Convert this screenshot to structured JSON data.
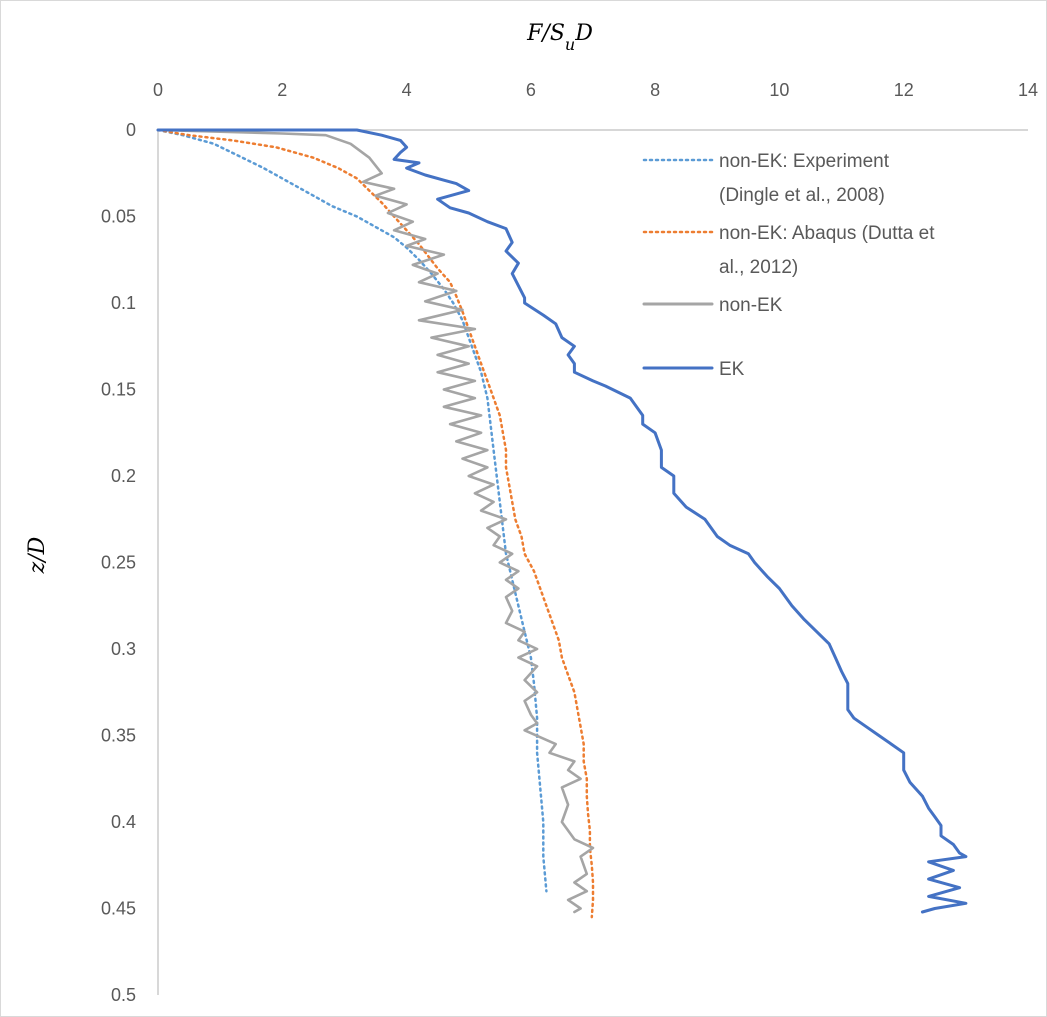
{
  "chart_data": {
    "type": "line",
    "title": "",
    "xlabel": "F/SuD",
    "ylabel": "z/D",
    "xlim": [
      0,
      14
    ],
    "ylim": [
      0,
      0.5
    ],
    "x_axis_position": "top",
    "y_axis_inverted": true,
    "grid": false,
    "legend_position": "top-right",
    "x_ticks": [
      "0",
      "2",
      "4",
      "6",
      "8",
      "10",
      "12",
      "14"
    ],
    "y_ticks": [
      "0",
      "0.05",
      "0.1",
      "0.15",
      "0.2",
      "0.25",
      "0.3",
      "0.35",
      "0.4",
      "0.45",
      "0.5"
    ],
    "series": [
      {
        "name": "non-EK: Experiment (Dingle et al., 2008)",
        "legend_lines": [
          "non-EK: Experiment",
          "(Dingle et al., 2008)"
        ],
        "color": "#5b9bd5",
        "style": "dotted",
        "points": [
          [
            0,
            0
          ],
          [
            0.4,
            0.003
          ],
          [
            0.9,
            0.008
          ],
          [
            1.3,
            0.015
          ],
          [
            1.7,
            0.022
          ],
          [
            2.1,
            0.03
          ],
          [
            2.5,
            0.038
          ],
          [
            2.8,
            0.044
          ],
          [
            3.2,
            0.05
          ],
          [
            3.5,
            0.056
          ],
          [
            3.8,
            0.062
          ],
          [
            4.0,
            0.068
          ],
          [
            4.2,
            0.075
          ],
          [
            4.4,
            0.083
          ],
          [
            4.6,
            0.092
          ],
          [
            4.75,
            0.1
          ],
          [
            4.9,
            0.11
          ],
          [
            5.0,
            0.12
          ],
          [
            5.1,
            0.13
          ],
          [
            5.2,
            0.14
          ],
          [
            5.3,
            0.155
          ],
          [
            5.35,
            0.17
          ],
          [
            5.4,
            0.185
          ],
          [
            5.45,
            0.2
          ],
          [
            5.5,
            0.215
          ],
          [
            5.55,
            0.23
          ],
          [
            5.6,
            0.245
          ],
          [
            5.7,
            0.26
          ],
          [
            5.8,
            0.275
          ],
          [
            5.9,
            0.29
          ],
          [
            6.0,
            0.305
          ],
          [
            6.05,
            0.32
          ],
          [
            6.1,
            0.34
          ],
          [
            6.1,
            0.36
          ],
          [
            6.15,
            0.38
          ],
          [
            6.2,
            0.4
          ],
          [
            6.2,
            0.42
          ],
          [
            6.25,
            0.44
          ]
        ]
      },
      {
        "name": "non-EK: Abaqus (Dutta et al., 2012)",
        "legend_lines": [
          "non-EK: Abaqus (Dutta et",
          "al., 2012)"
        ],
        "color": "#ed7d31",
        "style": "dotted",
        "points": [
          [
            0,
            0
          ],
          [
            0.5,
            0.003
          ],
          [
            1.2,
            0.006
          ],
          [
            1.9,
            0.01
          ],
          [
            2.5,
            0.016
          ],
          [
            2.9,
            0.022
          ],
          [
            3.2,
            0.028
          ],
          [
            3.4,
            0.035
          ],
          [
            3.6,
            0.042
          ],
          [
            3.8,
            0.05
          ],
          [
            4.0,
            0.058
          ],
          [
            4.2,
            0.066
          ],
          [
            4.35,
            0.073
          ],
          [
            4.5,
            0.08
          ],
          [
            4.7,
            0.088
          ],
          [
            4.8,
            0.096
          ],
          [
            4.9,
            0.105
          ],
          [
            5.0,
            0.115
          ],
          [
            5.1,
            0.125
          ],
          [
            5.2,
            0.135
          ],
          [
            5.3,
            0.145
          ],
          [
            5.4,
            0.155
          ],
          [
            5.5,
            0.165
          ],
          [
            5.55,
            0.175
          ],
          [
            5.6,
            0.185
          ],
          [
            5.6,
            0.195
          ],
          [
            5.65,
            0.205
          ],
          [
            5.7,
            0.215
          ],
          [
            5.75,
            0.225
          ],
          [
            5.85,
            0.235
          ],
          [
            5.9,
            0.245
          ],
          [
            6.05,
            0.255
          ],
          [
            6.15,
            0.265
          ],
          [
            6.25,
            0.275
          ],
          [
            6.35,
            0.285
          ],
          [
            6.45,
            0.295
          ],
          [
            6.5,
            0.305
          ],
          [
            6.6,
            0.315
          ],
          [
            6.7,
            0.325
          ],
          [
            6.75,
            0.335
          ],
          [
            6.8,
            0.345
          ],
          [
            6.85,
            0.355
          ],
          [
            6.85,
            0.365
          ],
          [
            6.9,
            0.375
          ],
          [
            6.9,
            0.385
          ],
          [
            6.92,
            0.395
          ],
          [
            6.95,
            0.405
          ],
          [
            6.95,
            0.415
          ],
          [
            6.98,
            0.425
          ],
          [
            7.0,
            0.435
          ],
          [
            7.0,
            0.445
          ],
          [
            6.98,
            0.455
          ]
        ]
      },
      {
        "name": "non-EK",
        "legend_lines": [
          "non-EK"
        ],
        "color": "#a5a5a5",
        "style": "solid",
        "points": [
          [
            0,
            0
          ],
          [
            1.0,
            0.001
          ],
          [
            2.0,
            0.002
          ],
          [
            2.7,
            0.003
          ],
          [
            3.1,
            0.008
          ],
          [
            3.4,
            0.016
          ],
          [
            3.6,
            0.025
          ],
          [
            3.3,
            0.03
          ],
          [
            3.8,
            0.034
          ],
          [
            3.5,
            0.038
          ],
          [
            4.0,
            0.043
          ],
          [
            3.7,
            0.048
          ],
          [
            4.1,
            0.053
          ],
          [
            3.8,
            0.058
          ],
          [
            4.3,
            0.063
          ],
          [
            4.0,
            0.067
          ],
          [
            4.6,
            0.072
          ],
          [
            4.1,
            0.078
          ],
          [
            4.5,
            0.083
          ],
          [
            4.2,
            0.088
          ],
          [
            4.8,
            0.093
          ],
          [
            4.3,
            0.099
          ],
          [
            4.9,
            0.104
          ],
          [
            4.2,
            0.11
          ],
          [
            5.1,
            0.115
          ],
          [
            4.4,
            0.12
          ],
          [
            5.0,
            0.125
          ],
          [
            4.5,
            0.13
          ],
          [
            5.0,
            0.135
          ],
          [
            4.5,
            0.14
          ],
          [
            5.1,
            0.145
          ],
          [
            4.6,
            0.15
          ],
          [
            5.1,
            0.155
          ],
          [
            4.6,
            0.16
          ],
          [
            5.2,
            0.165
          ],
          [
            4.7,
            0.17
          ],
          [
            5.2,
            0.175
          ],
          [
            4.8,
            0.18
          ],
          [
            5.3,
            0.185
          ],
          [
            4.9,
            0.19
          ],
          [
            5.3,
            0.195
          ],
          [
            5.0,
            0.2
          ],
          [
            5.4,
            0.205
          ],
          [
            5.1,
            0.21
          ],
          [
            5.4,
            0.215
          ],
          [
            5.2,
            0.22
          ],
          [
            5.6,
            0.225
          ],
          [
            5.3,
            0.23
          ],
          [
            5.5,
            0.235
          ],
          [
            5.4,
            0.24
          ],
          [
            5.7,
            0.245
          ],
          [
            5.5,
            0.25
          ],
          [
            5.8,
            0.255
          ],
          [
            5.6,
            0.26
          ],
          [
            5.8,
            0.265
          ],
          [
            5.6,
            0.27
          ],
          [
            5.7,
            0.278
          ],
          [
            5.6,
            0.285
          ],
          [
            5.9,
            0.29
          ],
          [
            5.8,
            0.295
          ],
          [
            6.1,
            0.3
          ],
          [
            5.8,
            0.305
          ],
          [
            6.1,
            0.31
          ],
          [
            5.9,
            0.318
          ],
          [
            6.1,
            0.325
          ],
          [
            5.9,
            0.33
          ],
          [
            6.0,
            0.338
          ],
          [
            6.1,
            0.343
          ],
          [
            5.9,
            0.347
          ],
          [
            6.4,
            0.355
          ],
          [
            6.3,
            0.36
          ],
          [
            6.7,
            0.365
          ],
          [
            6.6,
            0.37
          ],
          [
            6.8,
            0.375
          ],
          [
            6.5,
            0.38
          ],
          [
            6.6,
            0.39
          ],
          [
            6.5,
            0.4
          ],
          [
            6.7,
            0.41
          ],
          [
            7.0,
            0.415
          ],
          [
            6.8,
            0.42
          ],
          [
            6.9,
            0.43
          ],
          [
            6.7,
            0.435
          ],
          [
            6.9,
            0.44
          ],
          [
            6.6,
            0.445
          ],
          [
            6.8,
            0.45
          ],
          [
            6.7,
            0.452
          ]
        ]
      },
      {
        "name": "EK",
        "legend_lines": [
          "EK"
        ],
        "color": "#4472c4",
        "style": "solid",
        "points": [
          [
            0,
            0
          ],
          [
            1.2,
            0.0
          ],
          [
            2.5,
            0.0
          ],
          [
            3.2,
            0.0
          ],
          [
            3.6,
            0.003
          ],
          [
            3.9,
            0.006
          ],
          [
            4.0,
            0.01
          ],
          [
            3.9,
            0.013
          ],
          [
            3.8,
            0.017
          ],
          [
            4.2,
            0.019
          ],
          [
            4.0,
            0.022
          ],
          [
            4.3,
            0.026
          ],
          [
            4.6,
            0.029
          ],
          [
            4.8,
            0.031
          ],
          [
            5.0,
            0.035
          ],
          [
            4.5,
            0.04
          ],
          [
            4.7,
            0.045
          ],
          [
            5.0,
            0.048
          ],
          [
            5.3,
            0.053
          ],
          [
            5.6,
            0.057
          ],
          [
            5.7,
            0.065
          ],
          [
            5.6,
            0.07
          ],
          [
            5.8,
            0.077
          ],
          [
            5.7,
            0.083
          ],
          [
            5.8,
            0.09
          ],
          [
            5.9,
            0.097
          ],
          [
            5.9,
            0.1
          ],
          [
            6.2,
            0.107
          ],
          [
            6.4,
            0.112
          ],
          [
            6.5,
            0.12
          ],
          [
            6.7,
            0.125
          ],
          [
            6.6,
            0.13
          ],
          [
            6.7,
            0.135
          ],
          [
            6.7,
            0.14
          ],
          [
            7.0,
            0.145
          ],
          [
            7.2,
            0.148
          ],
          [
            7.6,
            0.155
          ],
          [
            7.8,
            0.165
          ],
          [
            7.8,
            0.17
          ],
          [
            8.0,
            0.175
          ],
          [
            8.1,
            0.185
          ],
          [
            8.1,
            0.195
          ],
          [
            8.3,
            0.2
          ],
          [
            8.3,
            0.21
          ],
          [
            8.5,
            0.218
          ],
          [
            8.8,
            0.225
          ],
          [
            9.0,
            0.235
          ],
          [
            9.2,
            0.24
          ],
          [
            9.5,
            0.245
          ],
          [
            9.6,
            0.25
          ],
          [
            9.8,
            0.258
          ],
          [
            10.0,
            0.265
          ],
          [
            10.2,
            0.275
          ],
          [
            10.4,
            0.283
          ],
          [
            10.6,
            0.29
          ],
          [
            10.8,
            0.297
          ],
          [
            10.9,
            0.305
          ],
          [
            11.0,
            0.313
          ],
          [
            11.1,
            0.32
          ],
          [
            11.1,
            0.328
          ],
          [
            11.1,
            0.335
          ],
          [
            11.2,
            0.34
          ],
          [
            11.4,
            0.345
          ],
          [
            11.6,
            0.35
          ],
          [
            11.8,
            0.355
          ],
          [
            12.0,
            0.36
          ],
          [
            12.0,
            0.37
          ],
          [
            12.1,
            0.377
          ],
          [
            12.3,
            0.385
          ],
          [
            12.4,
            0.392
          ],
          [
            12.5,
            0.397
          ],
          [
            12.6,
            0.402
          ],
          [
            12.6,
            0.408
          ],
          [
            12.8,
            0.413
          ],
          [
            12.9,
            0.418
          ],
          [
            13.0,
            0.42
          ],
          [
            12.4,
            0.423
          ],
          [
            12.8,
            0.428
          ],
          [
            12.4,
            0.433
          ],
          [
            12.9,
            0.438
          ],
          [
            12.4,
            0.443
          ],
          [
            13.0,
            0.447
          ],
          [
            12.5,
            0.45
          ],
          [
            12.3,
            0.452
          ]
        ]
      }
    ]
  }
}
